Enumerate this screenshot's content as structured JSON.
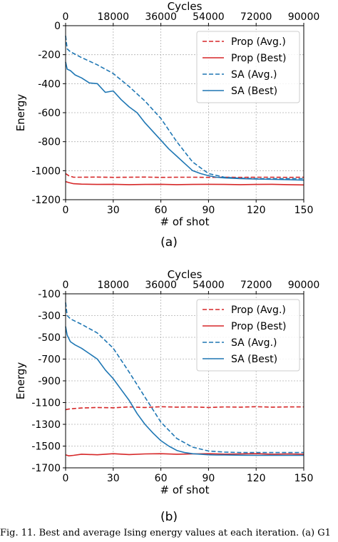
{
  "chart_data": [
    {
      "type": "line",
      "panel_label": "(a)",
      "xlabel": "# of shot",
      "ylabel": "Energy",
      "top_xlabel": "Cycles",
      "xlim": [
        0,
        150
      ],
      "ylim": [
        -1200,
        0
      ],
      "xticks": [
        0,
        30,
        60,
        90,
        120,
        150
      ],
      "yticks": [
        0,
        -200,
        -400,
        -600,
        -800,
        -1000,
        -1200
      ],
      "top_xticks": [
        0,
        18000,
        36000,
        54000,
        72000,
        90000
      ],
      "grid": true,
      "legend": "top-right",
      "series": [
        {
          "name": "Prop (Avg.)",
          "color": "#d62728",
          "dash": true,
          "x": [
            0,
            2,
            5,
            10,
            20,
            30,
            40,
            50,
            60,
            70,
            80,
            90,
            100,
            110,
            120,
            130,
            140,
            150
          ],
          "y": [
            -1020,
            -1035,
            -1045,
            -1045,
            -1044,
            -1046,
            -1045,
            -1044,
            -1046,
            -1045,
            -1045,
            -1046,
            -1045,
            -1046,
            -1045,
            -1045,
            -1046,
            -1045
          ]
        },
        {
          "name": "Prop (Best)",
          "color": "#d62728",
          "dash": false,
          "x": [
            0,
            2,
            5,
            10,
            20,
            30,
            40,
            50,
            60,
            70,
            80,
            90,
            100,
            110,
            120,
            130,
            140,
            150
          ],
          "y": [
            -1075,
            -1082,
            -1090,
            -1093,
            -1095,
            -1094,
            -1096,
            -1095,
            -1094,
            -1096,
            -1095,
            -1094,
            -1095,
            -1096,
            -1095,
            -1094,
            -1096,
            -1098
          ]
        },
        {
          "name": "SA (Avg.)",
          "color": "#1f77b4",
          "dash": true,
          "x": [
            0,
            1,
            3,
            10,
            20,
            30,
            40,
            50,
            60,
            70,
            80,
            90,
            100,
            110,
            120,
            130,
            140,
            150
          ],
          "y": [
            -70,
            -160,
            -180,
            -220,
            -270,
            -330,
            -420,
            -520,
            -640,
            -800,
            -940,
            -1020,
            -1045,
            -1052,
            -1055,
            -1055,
            -1055,
            -1055
          ]
        },
        {
          "name": "SA (Best)",
          "color": "#1f77b4",
          "dash": false,
          "x": [
            0,
            1,
            3,
            6,
            10,
            15,
            20,
            25,
            30,
            35,
            40,
            45,
            50,
            55,
            60,
            65,
            70,
            75,
            80,
            85,
            90,
            95,
            100,
            110,
            120,
            130,
            140,
            150
          ],
          "y": [
            -250,
            -300,
            -310,
            -340,
            -360,
            -395,
            -400,
            -460,
            -450,
            -510,
            -560,
            -600,
            -670,
            -730,
            -790,
            -850,
            -900,
            -950,
            -1000,
            -1020,
            -1035,
            -1045,
            -1050,
            -1055,
            -1058,
            -1060,
            -1062,
            -1065
          ]
        }
      ]
    },
    {
      "type": "line",
      "panel_label": "(b)",
      "xlabel": "# of shot",
      "ylabel": "Energy",
      "top_xlabel": "Cycles",
      "xlim": [
        0,
        150
      ],
      "ylim": [
        -1700,
        -100
      ],
      "xticks": [
        0,
        30,
        60,
        90,
        120,
        150
      ],
      "yticks": [
        -100,
        -300,
        -500,
        -700,
        -900,
        -1100,
        -1300,
        -1500,
        -1700
      ],
      "top_xticks": [
        0,
        18000,
        36000,
        54000,
        72000,
        90000
      ],
      "grid": true,
      "legend": "top-right",
      "series": [
        {
          "name": "Prop (Avg.)",
          "color": "#d62728",
          "dash": true,
          "x": [
            0,
            2,
            5,
            10,
            20,
            30,
            40,
            50,
            60,
            70,
            80,
            90,
            100,
            110,
            120,
            130,
            140,
            150
          ],
          "y": [
            -1165,
            -1160,
            -1155,
            -1150,
            -1145,
            -1148,
            -1140,
            -1145,
            -1138,
            -1142,
            -1140,
            -1145,
            -1140,
            -1142,
            -1138,
            -1142,
            -1140,
            -1140
          ]
        },
        {
          "name": "Prop (Best)",
          "color": "#d62728",
          "dash": false,
          "x": [
            0,
            2,
            5,
            10,
            20,
            30,
            40,
            50,
            60,
            70,
            80,
            90,
            100,
            110,
            120,
            130,
            140,
            150
          ],
          "y": [
            -1580,
            -1590,
            -1585,
            -1575,
            -1580,
            -1570,
            -1578,
            -1572,
            -1570,
            -1575,
            -1572,
            -1570,
            -1574,
            -1572,
            -1570,
            -1575,
            -1572,
            -1575
          ]
        },
        {
          "name": "SA (Avg.)",
          "color": "#1f77b4",
          "dash": true,
          "x": [
            0,
            1,
            3,
            10,
            20,
            30,
            40,
            50,
            60,
            70,
            80,
            90,
            100,
            110,
            120,
            130,
            140,
            150
          ],
          "y": [
            -180,
            -300,
            -330,
            -380,
            -460,
            -600,
            -820,
            -1050,
            -1280,
            -1430,
            -1510,
            -1545,
            -1555,
            -1560,
            -1560,
            -1560,
            -1560,
            -1560
          ]
        },
        {
          "name": "SA (Best)",
          "color": "#1f77b4",
          "dash": false,
          "x": [
            0,
            1,
            3,
            6,
            10,
            15,
            20,
            25,
            30,
            35,
            40,
            45,
            50,
            55,
            60,
            65,
            70,
            75,
            80,
            85,
            90,
            95,
            100,
            110,
            120,
            130,
            140,
            150
          ],
          "y": [
            -400,
            -480,
            -540,
            -570,
            -600,
            -650,
            -700,
            -800,
            -880,
            -980,
            -1080,
            -1200,
            -1300,
            -1380,
            -1450,
            -1500,
            -1540,
            -1560,
            -1570,
            -1575,
            -1580,
            -1582,
            -1582,
            -1584,
            -1585,
            -1585,
            -1585,
            -1585
          ]
        }
      ]
    }
  ],
  "caption": "Fig. 11.   Best and average Ising energy values at each iteration. (a) G1"
}
